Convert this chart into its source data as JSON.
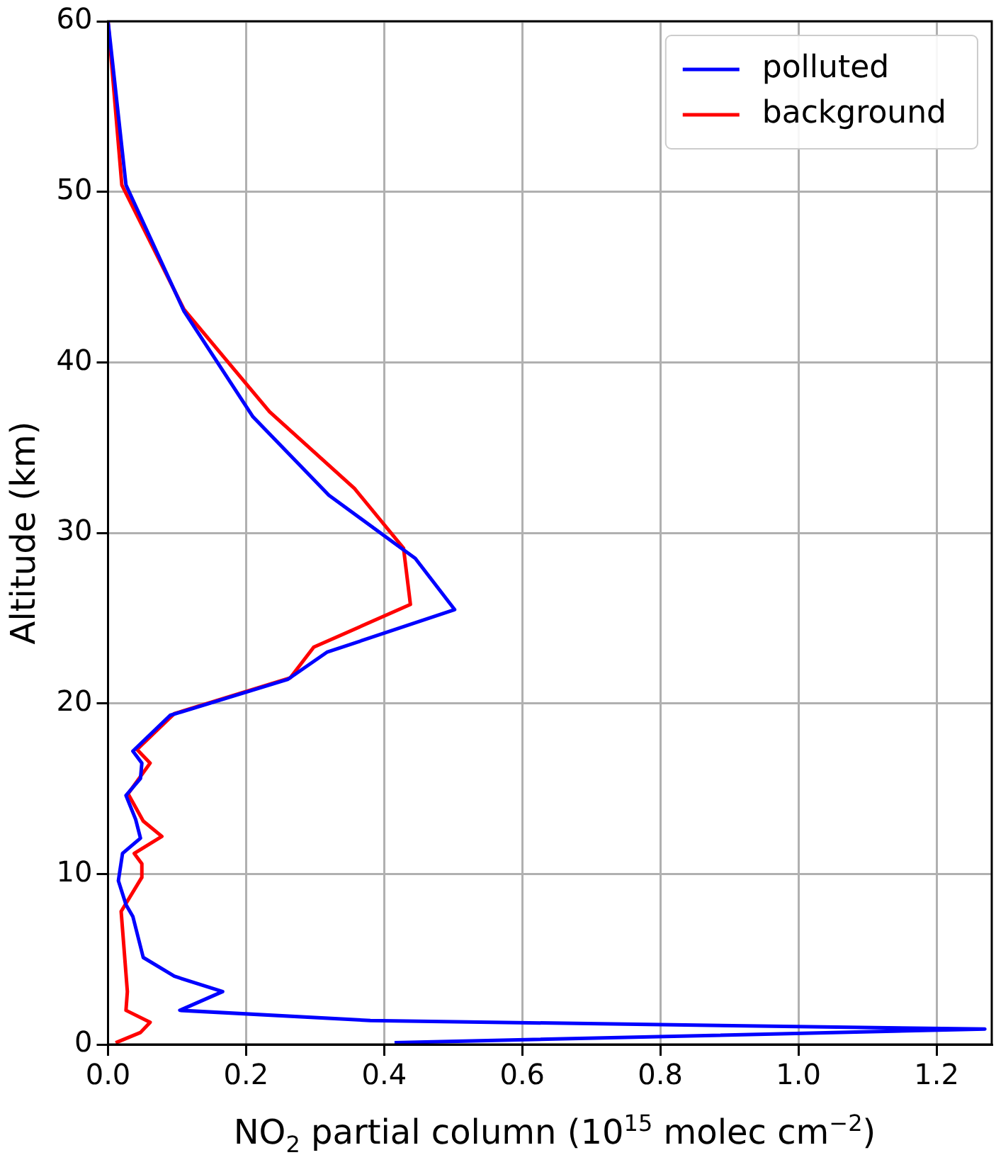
{
  "chart_data": {
    "type": "line",
    "xlabel": "NO$_{2}$ partial column (10$^{15}$ molec cm$^{−2}$)",
    "ylabel": "Altitude (km)",
    "xlim": [
      0,
      1.28
    ],
    "ylim": [
      0,
      60
    ],
    "xticks": [
      {
        "value": 0,
        "label": "0.0"
      },
      {
        "value": 0.2,
        "label": "0.2"
      },
      {
        "value": 0.4,
        "label": "0.4"
      },
      {
        "value": 0.6,
        "label": "0.6"
      },
      {
        "value": 0.8,
        "label": "0.8"
      },
      {
        "value": 1,
        "label": "1.0"
      },
      {
        "value": 1.2,
        "label": "1.2"
      }
    ],
    "yticks": [
      0,
      10,
      20,
      30,
      40,
      50,
      60
    ],
    "grid": true,
    "legend": "top right",
    "marker": "none",
    "line_style": "solid",
    "series": [
      {
        "name": "polluted",
        "color": "#0000ff",
        "x": [
          0,
          0.026,
          0.11,
          0.21,
          0.32,
          0.445,
          0.502,
          0.317,
          0.26,
          0.09,
          0.036,
          0.049,
          0.047,
          0.026,
          0.04,
          0.047,
          0.021,
          0.015,
          0.026,
          0.036,
          0.051,
          0.096,
          0.166,
          0.104,
          0.38,
          1.27,
          0.415
        ],
        "values": [
          60,
          50.4,
          43,
          36.8,
          32.2,
          28.5,
          25.5,
          23,
          21.4,
          19.3,
          17.2,
          16.5,
          15.6,
          14.6,
          13.2,
          12.1,
          11.2,
          9.6,
          8.2,
          7.5,
          5.1,
          4,
          3.1,
          2,
          1.4,
          0.9,
          0.1
        ]
      },
      {
        "name": "background",
        "color": "#ff0000",
        "x": [
          0,
          0.02,
          0.11,
          0.234,
          0.357,
          0.428,
          0.438,
          0.298,
          0.264,
          0.096,
          0.042,
          0.061,
          0.029,
          0.051,
          0.078,
          0.038,
          0.049,
          0.049,
          0.019,
          0.028,
          0.026,
          0.061,
          0.047,
          0.011
        ],
        "values": [
          60,
          50.4,
          43.1,
          37.1,
          32.6,
          29.1,
          25.8,
          23.3,
          21.5,
          19.4,
          17.3,
          16.5,
          14.7,
          13.1,
          12.2,
          11.2,
          10.6,
          9.8,
          7.8,
          3.1,
          2,
          1.3,
          0.7,
          0.1
        ]
      }
    ]
  }
}
